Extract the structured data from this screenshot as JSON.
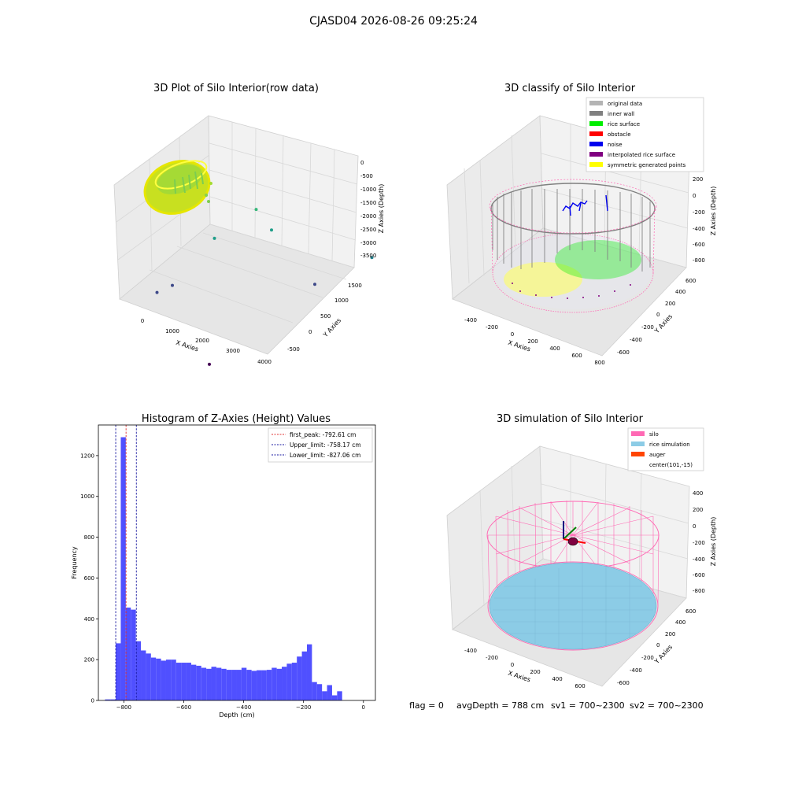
{
  "suptitle": "CJASD04 2026-08-26 09:25:24",
  "footer": {
    "flag": "flag = 0",
    "avg": "avgDepth = 788 cm",
    "sv1": "sv1 = 700~2300",
    "sv2": "sv2 = 700~2300"
  },
  "colors": {
    "hist_bar": "#5050ff",
    "peak_line": "#e03030",
    "limit_line": "#1a1aa0",
    "pane": "#f2f2f2",
    "grid": "#d8d8d8",
    "silo_wire": "#ff69b4",
    "rice_sim": "#8ccce6",
    "auger": "#ff4500",
    "inner_wall": "#808080",
    "rice_surface": "#00ee00",
    "noise": "#0000ee",
    "obstacle": "#ff0000",
    "interp": "#800080",
    "sym": "#ffff00",
    "original": "#b4b4b4"
  },
  "chart_data": [
    {
      "type": "scatter",
      "projection": "3d",
      "title": "3D Plot of Silo Interior(row data)",
      "xlabel": "X Axies",
      "ylabel": "Y Axies",
      "zlabel": "Z Axies (Depth)",
      "x_ticks": [
        "0",
        "1000",
        "2000",
        "3000",
        "4000"
      ],
      "y_ticks": [
        "-500",
        "0",
        "500",
        "1000",
        "1500"
      ],
      "z_ticks": [
        "0",
        "-500",
        "-1000",
        "-1500",
        "-2000",
        "-2500",
        "-3000",
        "-3500"
      ],
      "colormap": "viridis",
      "outlier_points": [
        {
          "x": 1700,
          "y": 900,
          "z": -1300
        },
        {
          "x": 1400,
          "y": 500,
          "z": -1700
        },
        {
          "x": 1900,
          "y": 1000,
          "z": -1900
        },
        {
          "x": 3500,
          "y": 1500,
          "z": -2600
        },
        {
          "x": 3000,
          "y": 1000,
          "z": -2900
        },
        {
          "x": 900,
          "y": 200,
          "z": -2800
        },
        {
          "x": 700,
          "y": 100,
          "z": -2950
        },
        {
          "x": 2600,
          "y": -200,
          "z": -3700
        }
      ]
    },
    {
      "type": "scatter",
      "projection": "3d",
      "title": "3D classify of Silo Interior",
      "xlabel": "X Axies",
      "ylabel": "Y Axies",
      "zlabel": "Z Axies (Depth)",
      "x_ticks": [
        "-400",
        "-200",
        "0",
        "200",
        "400",
        "600",
        "800"
      ],
      "y_ticks": [
        "-600",
        "-400",
        "-200",
        "0",
        "200",
        "400",
        "600"
      ],
      "z_ticks": [
        "200",
        "0",
        "-200",
        "-400",
        "-600",
        "-800"
      ],
      "legend_position": "top-right",
      "legend": [
        {
          "label": "original data",
          "color": "#b4b4b4"
        },
        {
          "label": "inner wall",
          "color": "#808080"
        },
        {
          "label": "rice surface",
          "color": "#00ee00"
        },
        {
          "label": "obstacle",
          "color": "#ff0000"
        },
        {
          "label": "noise",
          "color": "#0000ee"
        },
        {
          "label": "interpolated rice surface",
          "color": "#800080"
        },
        {
          "label": "symmetric generated points",
          "color": "#ffff00"
        }
      ]
    },
    {
      "type": "bar",
      "title": "Histogram of Z-Axies (Height) Values",
      "xlabel": "Depth (cm)",
      "ylabel": "Frequency",
      "xlim": [
        -885,
        40
      ],
      "ylim": [
        0,
        1350
      ],
      "x_ticks": [
        -800,
        -600,
        -400,
        -200,
        0
      ],
      "x_tick_labels": [
        "−800",
        "−600",
        "−400",
        "−200",
        "0"
      ],
      "y_ticks": [
        0,
        200,
        400,
        600,
        800,
        1000,
        1200
      ],
      "bin_start": -827.06,
      "bin_width": 16.8,
      "pre_bins": [
        {
          "x0": -845,
          "x1": -827.06,
          "value": 5
        },
        {
          "x0": -863,
          "x1": -845,
          "value": 5
        }
      ],
      "values": [
        280,
        1290,
        455,
        445,
        290,
        245,
        230,
        210,
        205,
        195,
        200,
        200,
        185,
        185,
        185,
        175,
        170,
        160,
        155,
        165,
        160,
        155,
        150,
        150,
        150,
        160,
        150,
        145,
        148,
        148,
        150,
        160,
        155,
        165,
        180,
        185,
        215,
        240,
        275,
        90,
        80,
        45,
        75,
        25,
        45
      ],
      "lines": [
        {
          "label": "first_peak: -792.61 cm",
          "value": -792.61,
          "style": "dashed",
          "color": "#e03030"
        },
        {
          "label": "Upper_limit: -758.17 cm",
          "value": -758.17,
          "style": "dashed",
          "color": "#1a1aa0"
        },
        {
          "label": "Lower_limit: -827.06 cm",
          "value": -827.06,
          "style": "dashed",
          "color": "#1a1aa0"
        }
      ],
      "legend_position": "top-right"
    },
    {
      "type": "scatter",
      "projection": "3d",
      "title": "3D simulation of Silo Interior",
      "xlabel": "X Axies",
      "ylabel": "Y Axies",
      "zlabel": "Z Axies (Depth)",
      "x_ticks": [
        "-400",
        "-200",
        "0",
        "200",
        "400",
        "600"
      ],
      "y_ticks": [
        "-600",
        "-400",
        "-200",
        "0",
        "200",
        "400",
        "600"
      ],
      "z_ticks": [
        "400",
        "200",
        "0",
        "-200",
        "-400",
        "-600",
        "-800"
      ],
      "legend_position": "top-right",
      "legend": [
        {
          "label": "silo",
          "color": "#ff69b4"
        },
        {
          "label": "rice simulation",
          "color": "#8ccce6"
        },
        {
          "label": "auger",
          "color": "#ff4500"
        },
        {
          "label": "center(101,-15)",
          "color": ""
        }
      ]
    }
  ]
}
